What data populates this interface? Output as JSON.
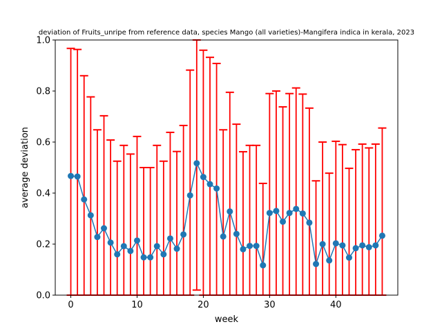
{
  "chart_data": {
    "type": "line",
    "title": "deviation of Fruits_unripe from reference data, species Mango (all varieties)-Mangifera indica in kerala, 2023",
    "xlabel": "week",
    "ylabel": "average deviation",
    "xlim": [
      -2.35,
      49.35
    ],
    "ylim": [
      0.0,
      1.0
    ],
    "xticks": [
      0,
      10,
      20,
      30,
      40
    ],
    "yticks": [
      0.0,
      0.2,
      0.4,
      0.6,
      0.8,
      1.0
    ],
    "grid": false,
    "series": [
      {
        "name": "",
        "x": [
          0,
          1,
          2,
          3,
          4,
          5,
          6,
          7,
          8,
          9,
          10,
          11,
          12,
          13,
          14,
          15,
          16,
          17,
          18,
          19,
          20,
          21,
          22,
          23,
          24,
          25,
          26,
          27,
          28,
          29,
          30,
          31,
          32,
          33,
          34,
          35,
          36,
          37,
          38,
          39,
          40,
          41,
          42,
          43,
          44,
          45,
          46,
          47
        ],
        "y": [
          0.467,
          0.465,
          0.375,
          0.313,
          0.228,
          0.262,
          0.206,
          0.16,
          0.192,
          0.173,
          0.214,
          0.148,
          0.148,
          0.192,
          0.16,
          0.222,
          0.182,
          0.238,
          0.391,
          0.517,
          0.463,
          0.435,
          0.418,
          0.23,
          0.328,
          0.24,
          0.18,
          0.193,
          0.193,
          0.117,
          0.322,
          0.33,
          0.288,
          0.322,
          0.338,
          0.32,
          0.284,
          0.122,
          0.2,
          0.136,
          0.203,
          0.195,
          0.147,
          0.184,
          0.195,
          0.188,
          0.195,
          0.233
        ],
        "err_upper": [
          0.967,
          0.963,
          0.86,
          0.777,
          0.648,
          0.703,
          0.608,
          0.525,
          0.587,
          0.553,
          0.622,
          0.5,
          0.5,
          0.587,
          0.525,
          0.638,
          0.563,
          0.665,
          0.882,
          1.0,
          0.96,
          0.932,
          0.908,
          0.648,
          0.795,
          0.67,
          0.562,
          0.587,
          0.587,
          0.438,
          0.79,
          0.8,
          0.738,
          0.79,
          0.812,
          0.788,
          0.733,
          0.448,
          0.6,
          0.478,
          0.603,
          0.59,
          0.497,
          0.57,
          0.592,
          0.577,
          0.592,
          0.655
        ],
        "err_lower": [
          0,
          0,
          0,
          0,
          0,
          0,
          0,
          0,
          0,
          0,
          0,
          0,
          0,
          0,
          0,
          0,
          0,
          0,
          0,
          0.02,
          0,
          0,
          0,
          0,
          0,
          0,
          0,
          0,
          0,
          0,
          0,
          0,
          0,
          0,
          0,
          0,
          0,
          0,
          0,
          0,
          0,
          0,
          0,
          0,
          0,
          0,
          0,
          0
        ],
        "line_color": "#1f77b4",
        "error_color": "#ff0000"
      }
    ]
  }
}
